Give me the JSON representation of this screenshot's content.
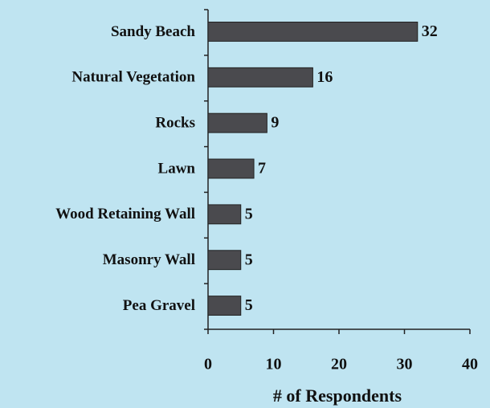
{
  "chart_data": {
    "type": "barh",
    "categories": [
      "Sandy Beach",
      "Natural Vegetation",
      "Rocks",
      "Lawn",
      "Wood Retaining Wall",
      "Masonry Wall",
      "Pea Gravel"
    ],
    "values": [
      32,
      16,
      9,
      7,
      5,
      5,
      5
    ],
    "color": "#4a4a4e",
    "xlabel": "# of Respondents",
    "xlim": [
      0,
      40
    ],
    "xticks": [
      0,
      10,
      20,
      30,
      40
    ]
  }
}
